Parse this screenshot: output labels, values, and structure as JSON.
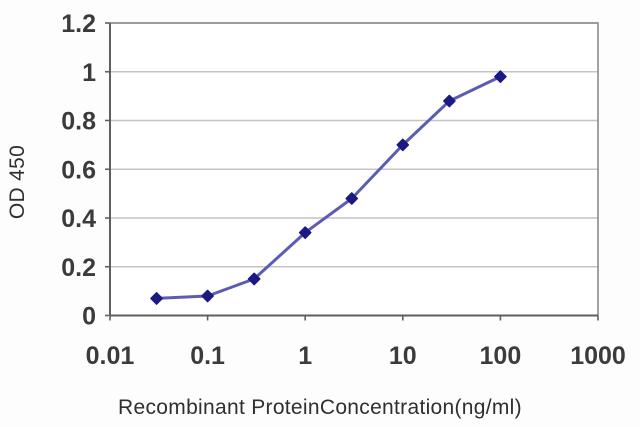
{
  "page": {
    "background": "#fdfdfd"
  },
  "chart_data": {
    "type": "line",
    "title": "",
    "xlabel": "Recombinant ProteinConcentration(ng/ml)",
    "ylabel": "OD 450",
    "x_scale": "log",
    "xlim": [
      0.01,
      1000
    ],
    "ylim": [
      0,
      1.2
    ],
    "x_tick_values": [
      0.01,
      0.1,
      1,
      10,
      100,
      1000
    ],
    "x_tick_labels": [
      "0.01",
      "0.1",
      "1",
      "10",
      "100",
      "1000"
    ],
    "y_tick_values": [
      0,
      0.2,
      0.4,
      0.6,
      0.8,
      1,
      1.2
    ],
    "y_tick_labels": [
      "0",
      "0.2",
      "0.4",
      "0.6",
      "0.8",
      "1",
      "1.2"
    ],
    "grid": "horizontal",
    "legend": "none",
    "series": [
      {
        "marker": "diamond",
        "x": [
          0.03,
          0.1,
          0.3,
          1,
          3,
          10,
          30,
          100
        ],
        "y": [
          0.07,
          0.08,
          0.15,
          0.34,
          0.48,
          0.7,
          0.88,
          0.98
        ]
      }
    ],
    "colors": {
      "line": "#5c5cb4",
      "marker": "#1a1a82",
      "grid": "#c4c4c4",
      "plot_border": "#8a8a8a",
      "axis": "#5f5f5f",
      "tick_text": "#3b3b3b",
      "title_text": "#2f2f2f",
      "plot_background": "#ffffff"
    }
  }
}
